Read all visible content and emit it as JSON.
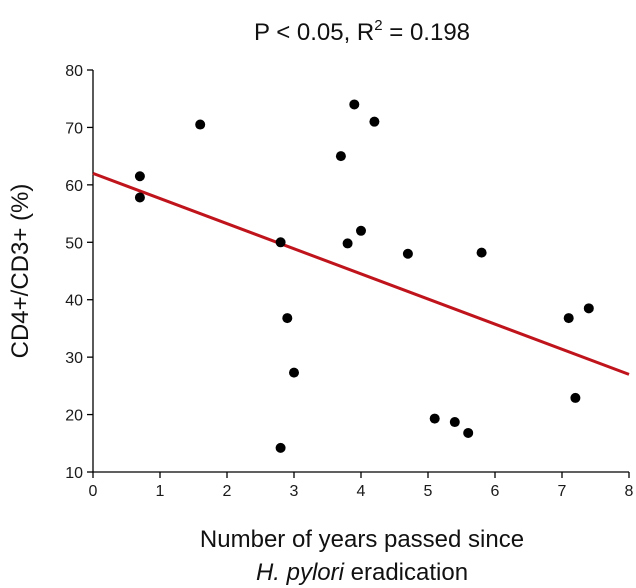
{
  "chart_data": {
    "type": "scatter",
    "title": {
      "main": "P < 0.05, R",
      "superscript": "2",
      "suffix": " = 0.198"
    },
    "xlabel": {
      "line1": "Number of years passed since",
      "line2_italic": "H. pylori",
      "line2_rest": " eradication"
    },
    "ylabel": "CD4+/CD3+ (%)",
    "xlim": [
      0,
      8
    ],
    "ylim": [
      10,
      80
    ],
    "xticks": [
      "0",
      "1",
      "2",
      "3",
      "4",
      "5",
      "6",
      "7",
      "8"
    ],
    "yticks": [
      "10",
      "20",
      "30",
      "40",
      "50",
      "60",
      "70",
      "80"
    ],
    "grid": false,
    "legend": "none",
    "points": [
      {
        "x": 0.7,
        "y": 61.5
      },
      {
        "x": 0.7,
        "y": 57.8
      },
      {
        "x": 1.6,
        "y": 70.5
      },
      {
        "x": 2.8,
        "y": 50.0
      },
      {
        "x": 2.9,
        "y": 36.8
      },
      {
        "x": 3.0,
        "y": 27.3
      },
      {
        "x": 2.8,
        "y": 14.2
      },
      {
        "x": 3.7,
        "y": 65.0
      },
      {
        "x": 3.9,
        "y": 74.0
      },
      {
        "x": 4.2,
        "y": 71.0
      },
      {
        "x": 3.8,
        "y": 49.8
      },
      {
        "x": 4.0,
        "y": 52.0
      },
      {
        "x": 4.7,
        "y": 48.0
      },
      {
        "x": 5.8,
        "y": 48.2
      },
      {
        "x": 5.1,
        "y": 19.3
      },
      {
        "x": 5.4,
        "y": 18.7
      },
      {
        "x": 5.6,
        "y": 16.8
      },
      {
        "x": 7.1,
        "y": 36.8
      },
      {
        "x": 7.4,
        "y": 38.5
      },
      {
        "x": 7.2,
        "y": 22.9
      }
    ],
    "regression": {
      "x": [
        0,
        8
      ],
      "y": [
        62.0,
        27.0
      ]
    },
    "colors": {
      "points": "#000000",
      "regression_line": "#c0141c",
      "axis": "#000000"
    }
  }
}
